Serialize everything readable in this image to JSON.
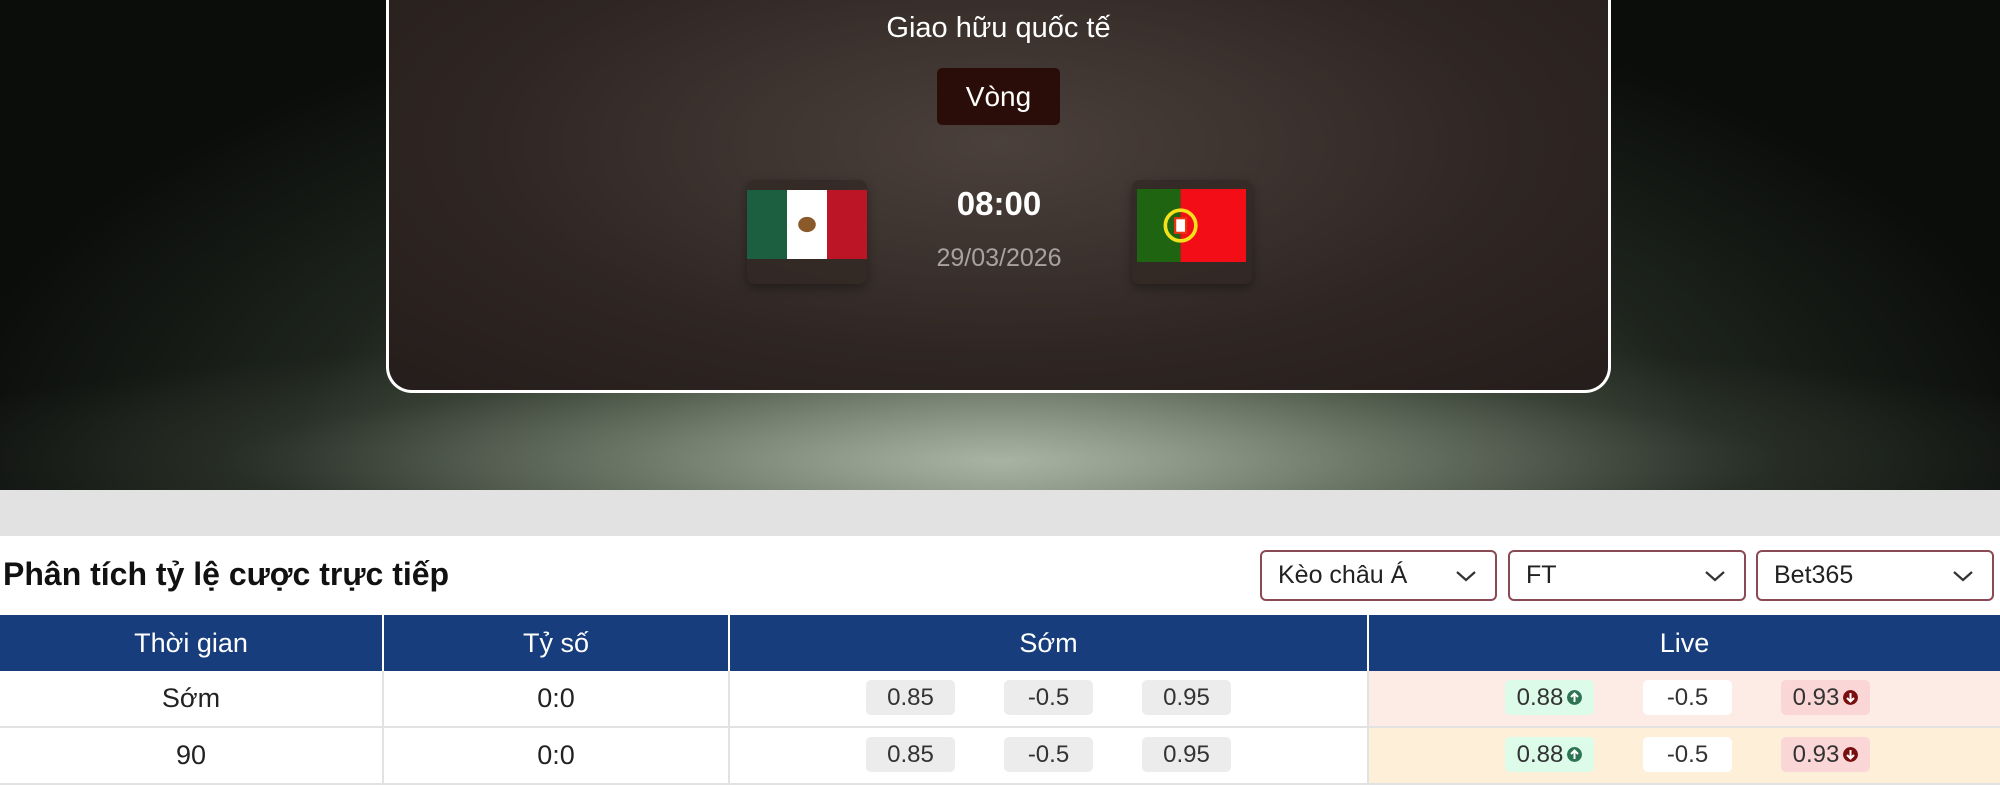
{
  "match": {
    "league": "Giao hữu quốc tế",
    "round": "Vòng",
    "time": "08:00",
    "date": "29/03/2026",
    "home_flag": "mexico-flag",
    "away_flag": "portugal-flag"
  },
  "odds": {
    "title": "Phân tích tỷ lệ cược trực tiếp",
    "filters": [
      {
        "value": "Kèo châu Á"
      },
      {
        "value": "FT"
      },
      {
        "value": "Bet365"
      }
    ],
    "headers": [
      "Thời gian",
      "Tỷ số",
      "Sớm",
      "Live"
    ],
    "rows": [
      {
        "time": "Sớm",
        "score": "0:0",
        "early": [
          "0.85",
          "-0.5",
          "0.95"
        ],
        "live": [
          "0.88",
          "-0.5",
          "0.93"
        ],
        "live_trend": [
          "up",
          "none",
          "down"
        ],
        "live_bg": "#fdece6"
      },
      {
        "time": "90",
        "score": "0:0",
        "early": [
          "0.85",
          "-0.5",
          "0.95"
        ],
        "live": [
          "0.88",
          "-0.5",
          "0.93"
        ],
        "live_trend": [
          "up",
          "none",
          "down"
        ],
        "live_bg": "#fdefd8"
      }
    ]
  },
  "colors": {
    "header": "#173d7d",
    "up": "#2e7453",
    "down": "#7a0f0f"
  }
}
